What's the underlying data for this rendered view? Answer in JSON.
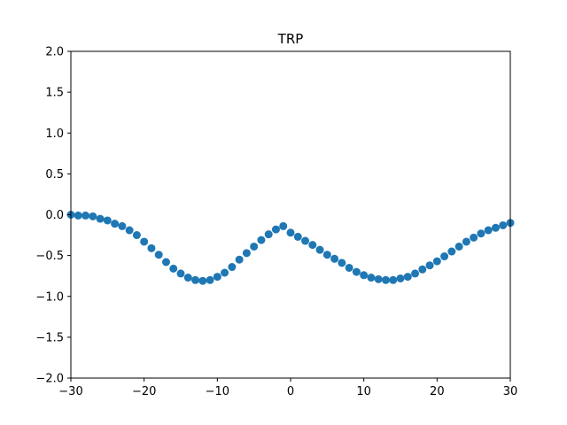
{
  "chart_data": {
    "type": "scatter",
    "title": "TRP",
    "xlabel": "",
    "ylabel": "",
    "xlim": [
      -30,
      30
    ],
    "ylim": [
      -2.0,
      2.0
    ],
    "xticks": [
      -30,
      -20,
      -10,
      0,
      10,
      20,
      30
    ],
    "xtick_labels": [
      "−30",
      "−20",
      "−10",
      "0",
      "10",
      "20",
      "30"
    ],
    "yticks": [
      -2.0,
      -1.5,
      -1.0,
      -0.5,
      0.0,
      0.5,
      1.0,
      1.5,
      2.0
    ],
    "ytick_labels": [
      "−2.0",
      "−1.5",
      "−1.0",
      "−0.5",
      "0.0",
      "0.5",
      "1.0",
      "1.5",
      "2.0"
    ],
    "grid": false,
    "marker_color": "#1f77b4",
    "series": [
      {
        "x": [
          -30,
          -29,
          -28,
          -27,
          -26,
          -25,
          -24,
          -23,
          -22,
          -21,
          -20,
          -19,
          -18,
          -17,
          -16,
          -15,
          -14,
          -13,
          -12,
          -11,
          -10,
          -9,
          -8,
          -7,
          -6,
          -5,
          -4,
          -3,
          -2,
          -1,
          0,
          1,
          2,
          3,
          4,
          5,
          6,
          7,
          8,
          9,
          10,
          11,
          12,
          13,
          14,
          15,
          16,
          17,
          18,
          19,
          20,
          21,
          22,
          23,
          24,
          25,
          26,
          27,
          28,
          29,
          30
        ],
        "y": [
          0.0,
          -0.01,
          -0.01,
          -0.02,
          -0.05,
          -0.07,
          -0.11,
          -0.14,
          -0.19,
          -0.25,
          -0.33,
          -0.41,
          -0.49,
          -0.58,
          -0.66,
          -0.72,
          -0.77,
          -0.8,
          -0.81,
          -0.8,
          -0.76,
          -0.71,
          -0.64,
          -0.55,
          -0.47,
          -0.39,
          -0.31,
          -0.24,
          -0.18,
          -0.14,
          -0.22,
          -0.27,
          -0.32,
          -0.37,
          -0.43,
          -0.49,
          -0.54,
          -0.59,
          -0.65,
          -0.7,
          -0.74,
          -0.77,
          -0.79,
          -0.8,
          -0.8,
          -0.78,
          -0.76,
          -0.72,
          -0.67,
          -0.62,
          -0.57,
          -0.51,
          -0.45,
          -0.39,
          -0.33,
          -0.28,
          -0.23,
          -0.19,
          -0.16,
          -0.13,
          -0.1
        ]
      }
    ]
  }
}
